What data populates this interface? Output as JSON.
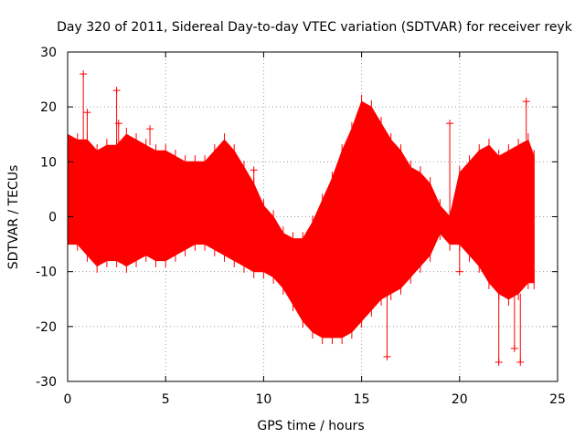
{
  "chart_data": {
    "type": "scatter",
    "title": "Day 320 of 2011, Sidereal Day-to-day VTEC variation (SDTVAR) for receiver reyk",
    "xlabel": "GPS time / hours",
    "ylabel": "SDTVAR / TECUs",
    "xlim": [
      0,
      25
    ],
    "ylim": [
      -30,
      30
    ],
    "xticks": [
      0,
      5,
      10,
      15,
      20,
      25
    ],
    "yticks": [
      -30,
      -20,
      -10,
      0,
      10,
      20,
      30
    ],
    "grid": true,
    "marker": "+",
    "color": "#ff0000",
    "series": [
      {
        "name": "SDTVAR",
        "x": [
          0.0,
          0.5,
          1.0,
          1.5,
          2.0,
          2.5,
          3.0,
          3.5,
          4.0,
          4.5,
          5.0,
          5.5,
          6.0,
          6.5,
          7.0,
          7.5,
          8.0,
          8.5,
          9.0,
          9.5,
          10.0,
          10.5,
          11.0,
          11.5,
          12.0,
          12.5,
          13.0,
          13.5,
          14.0,
          14.5,
          15.0,
          15.5,
          16.0,
          16.5,
          17.0,
          17.5,
          18.0,
          18.5,
          19.0,
          19.5,
          20.0,
          20.5,
          21.0,
          21.5,
          22.0,
          22.5,
          23.0,
          23.5,
          23.8
        ],
        "upper": [
          15,
          14,
          14,
          12,
          13,
          13,
          15,
          14,
          13,
          12,
          12,
          11,
          10,
          10,
          10,
          12,
          14,
          12,
          9,
          6,
          2,
          0,
          -3,
          -4,
          -4,
          -1,
          3,
          7,
          12,
          16,
          21,
          20,
          17,
          14,
          12,
          9,
          8,
          6,
          2,
          0,
          8,
          10,
          12,
          13,
          11,
          12,
          13,
          14,
          11
        ],
        "lower": [
          -5,
          -5,
          -7,
          -9,
          -8,
          -8,
          -9,
          -8,
          -7,
          -8,
          -8,
          -7,
          -6,
          -5,
          -5,
          -6,
          -7,
          -8,
          -9,
          -10,
          -10,
          -11,
          -13,
          -16,
          -19,
          -21,
          -22,
          -22,
          -22,
          -21,
          -19,
          -17,
          -15,
          -14,
          -13,
          -11,
          -9,
          -7,
          -3,
          -5,
          -5,
          -7,
          -9,
          -12,
          -14,
          -15,
          -14,
          -12,
          -12
        ],
        "outliers": [
          {
            "x": 0.8,
            "y": 26
          },
          {
            "x": 2.5,
            "y": 23
          },
          {
            "x": 2.6,
            "y": 17
          },
          {
            "x": 4.2,
            "y": 16
          },
          {
            "x": 9.5,
            "y": 8.5
          },
          {
            "x": 13.8,
            "y": -21
          },
          {
            "x": 16.3,
            "y": -25.5
          },
          {
            "x": 19.5,
            "y": 17
          },
          {
            "x": 22.0,
            "y": -26.5
          },
          {
            "x": 22.8,
            "y": -24
          },
          {
            "x": 23.1,
            "y": -26.5
          },
          {
            "x": 23.4,
            "y": 21
          },
          {
            "x": 1.0,
            "y": 19
          },
          {
            "x": 20.0,
            "y": -10
          },
          {
            "x": 21.0,
            "y": -8
          }
        ]
      }
    ]
  }
}
